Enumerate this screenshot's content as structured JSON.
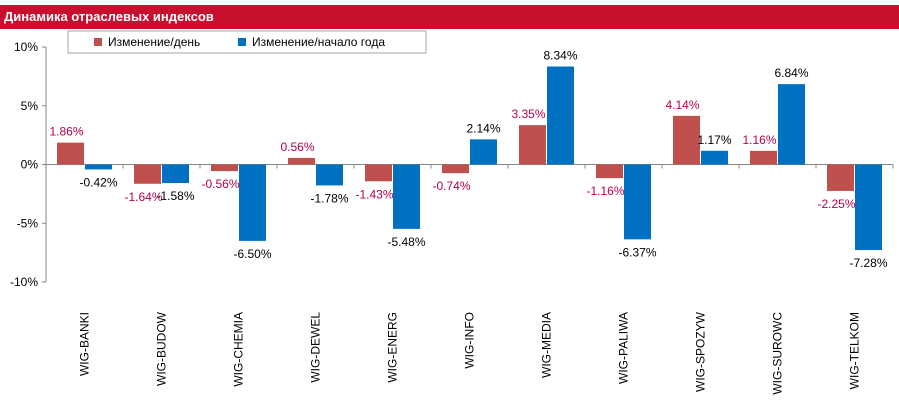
{
  "header": {
    "title": "Динамика отраслевых индексов"
  },
  "chart_data": {
    "type": "bar",
    "title": "Динамика отраслевых индексов",
    "categories": [
      "WIG-BANKI",
      "WIG-BUDOW",
      "WIG-CHEMIA",
      "WIG-DEWEL",
      "WIG-ENERG",
      "WIG-INFO",
      "WIG-MEDIA",
      "WIG-PALIWA",
      "WIG-SPOZYW",
      "WIG-SUROWC",
      "WIG-TELKOM"
    ],
    "series": [
      {
        "name": "Изменение/день",
        "values": [
          1.86,
          -1.64,
          -0.56,
          0.56,
          -1.43,
          -0.74,
          3.35,
          -1.16,
          4.14,
          1.16,
          -2.25
        ],
        "labels": [
          "1.86%",
          "-1.64%",
          "-0.56%",
          "0.56%",
          "-1.43%",
          "-0.74%",
          "3.35%",
          "-1.16%",
          "4.14%",
          "1.16%",
          "-2.25%"
        ]
      },
      {
        "name": "Изменение/начало года",
        "values": [
          -0.42,
          -1.58,
          -6.5,
          -1.78,
          -5.48,
          2.14,
          8.34,
          -6.37,
          1.17,
          6.84,
          -7.28
        ],
        "labels": [
          "-0.42%",
          "-1.58%",
          "-6.50%",
          "-1.78%",
          "-5.48%",
          "2.14%",
          "8.34%",
          "-6.37%",
          "1.17%",
          "6.84%",
          "-7.28%"
        ]
      }
    ],
    "ylim": [
      -10,
      10
    ],
    "yticks": [
      10,
      5,
      0,
      -5,
      -10
    ],
    "ytick_labels": [
      "10%",
      "5%",
      "0%",
      "-5%",
      "-10%"
    ],
    "grid": false,
    "legend": "top-left",
    "colors": {
      "day": "#c0504d",
      "year": "#0070c0",
      "day_label": "#b5004e",
      "year_label": "#000000"
    }
  }
}
